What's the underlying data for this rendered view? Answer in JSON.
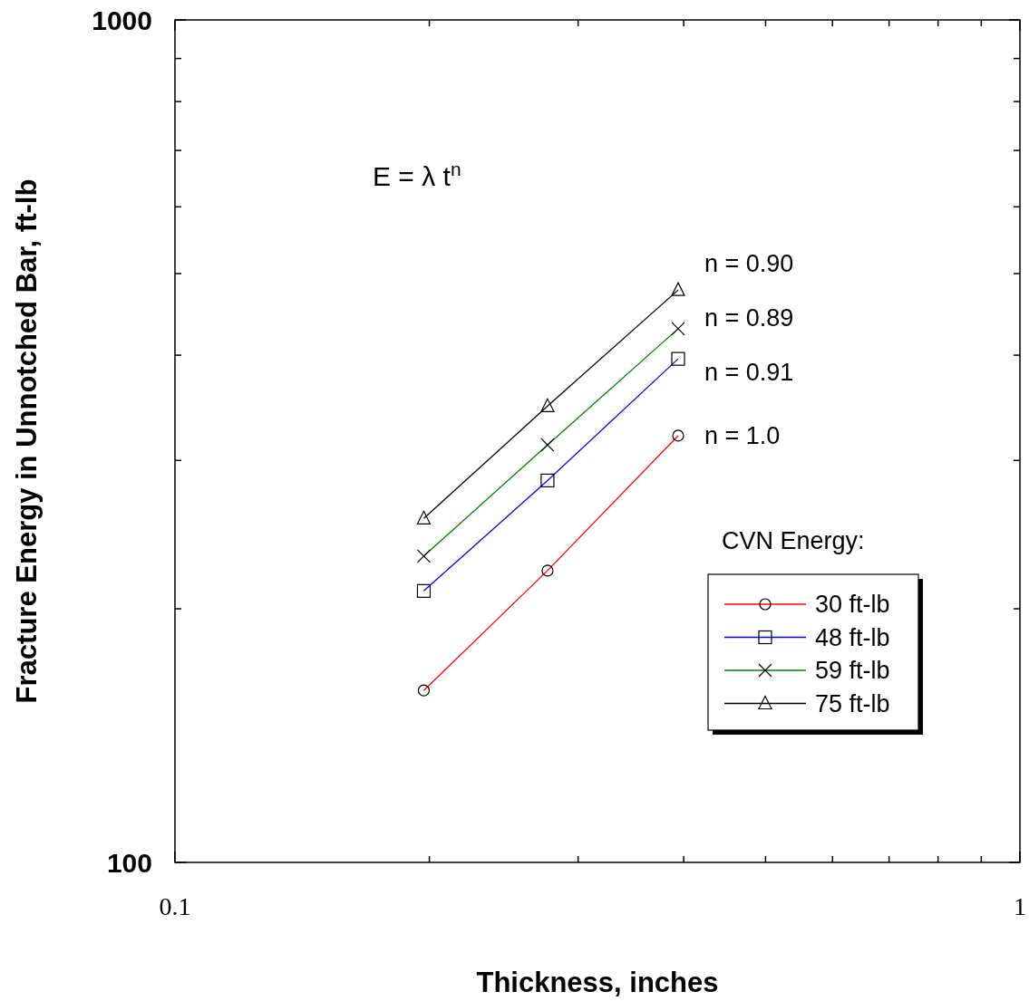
{
  "chart_data": {
    "type": "line",
    "xlabel": "Thickness, inches",
    "ylabel": "Fracture Energy in Unnotched Bar, ft-lb",
    "log": "xy",
    "xlim": [
      0.1,
      1
    ],
    "xticks": [
      0.1,
      {
        "value": 0.2,
        "label": null
      },
      {
        "value": 0.3,
        "label": null
      },
      {
        "value": 0.4,
        "label": null
      },
      {
        "value": 0.5,
        "label": null
      },
      {
        "value": 0.6,
        "label": null
      },
      {
        "value": 0.7,
        "label": null
      },
      {
        "value": 0.8,
        "label": null
      },
      {
        "value": 0.9,
        "label": null
      },
      1
    ],
    "ylim": [
      100,
      1000
    ],
    "yticks": [
      100,
      {
        "value": 200,
        "label": null
      },
      {
        "value": 300,
        "label": null
      },
      {
        "value": 400,
        "label": null
      },
      {
        "value": 500,
        "label": null
      },
      {
        "value": 600,
        "label": null
      },
      {
        "value": 700,
        "label": null
      },
      {
        "value": 800,
        "label": null
      },
      {
        "value": 900,
        "label": null
      },
      1000
    ],
    "legend": "bottom right",
    "legend_title": "CVN Energy:",
    "line_style": "solid",
    "x": [
      0.197,
      0.276,
      0.394
    ],
    "series": [
      {
        "name": "30 ft-lb",
        "color": "#ff0000",
        "marker": "circle",
        "values": [
          160,
          222,
          321
        ]
      },
      {
        "name": "48 ft-lb",
        "color": "#0000ff",
        "marker": "square",
        "values": [
          210,
          284,
          396
        ]
      },
      {
        "name": "59 ft-lb",
        "color": "#008000",
        "marker": "cross",
        "values": [
          231,
          313,
          430
        ]
      },
      {
        "name": "75 ft-lb",
        "color": "#000000",
        "marker": "triangle",
        "values": [
          256,
          348,
          478
        ]
      }
    ],
    "annotations": [
      "E = λ t$^{n}$",
      "n = 0.90",
      "n = 0.89",
      "n = 0.91",
      "n = 1.0"
    ]
  }
}
